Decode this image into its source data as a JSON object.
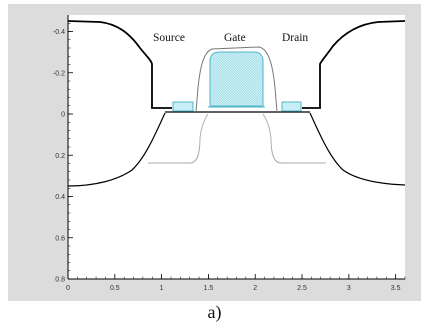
{
  "caption": "a)",
  "labels": {
    "source": "Source",
    "gate": "Gate",
    "drain": "Drain"
  },
  "colors": {
    "frame_background": "#dcdcdc",
    "plot_background": "#ffffff",
    "outline": "#000000",
    "oxide_fill": "#c8eef5",
    "oxide_stroke": "#4fb6c9",
    "spacer_line": "#777777",
    "junction_line": "#a8a8a8"
  },
  "chart_data": {
    "type": "diagram",
    "x_ticks": [
      "0",
      "0.5",
      "1",
      "1.5",
      "2",
      "2.5",
      "3",
      "3.5"
    ],
    "y_ticks": [
      "-0.4",
      "-0.2",
      "0",
      "0.2",
      "0.4",
      "0.6",
      "0.8"
    ],
    "xlim": [
      0,
      3.6
    ],
    "ylim": [
      -0.48,
      0.8
    ],
    "grid": false
  }
}
